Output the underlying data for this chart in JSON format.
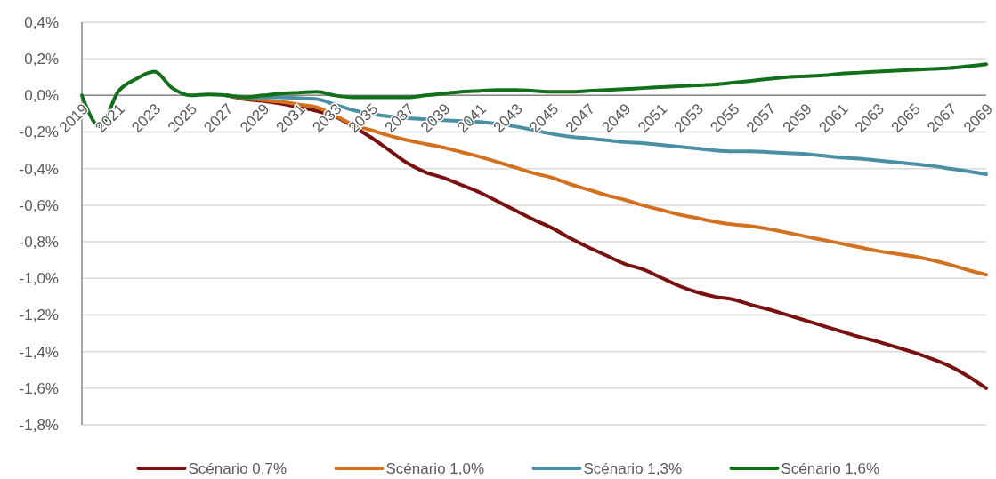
{
  "chart_data": {
    "type": "line",
    "categories": [
      "2019",
      null,
      "2021",
      null,
      "2023",
      null,
      "2025",
      null,
      "2027",
      null,
      "2029",
      null,
      "2031",
      null,
      "2033",
      null,
      "2035",
      null,
      "2037",
      null,
      "2039",
      null,
      "2041",
      null,
      "2043",
      null,
      "2045",
      null,
      "2047",
      null,
      "2049",
      null,
      "2051",
      null,
      "2053",
      null,
      "2055",
      null,
      "2057",
      null,
      "2059",
      null,
      "2061",
      null,
      "2063",
      null,
      "2065",
      null,
      "2067",
      null,
      "2069"
    ],
    "series": [
      {
        "name": "Scénario 0,7%",
        "color": "#7b1010",
        "values": [
          null,
          null,
          null,
          null,
          null,
          null,
          null,
          null,
          0,
          -0.02,
          -0.03,
          -0.045,
          -0.065,
          -0.085,
          -0.115,
          -0.17,
          -0.23,
          -0.3,
          -0.37,
          -0.42,
          -0.45,
          -0.49,
          -0.53,
          -0.58,
          -0.63,
          -0.68,
          -0.725,
          -0.78,
          -0.83,
          -0.875,
          -0.92,
          -0.95,
          -0.995,
          -1.04,
          -1.075,
          -1.1,
          -1.115,
          -1.145,
          -1.17,
          -1.2,
          -1.23,
          -1.26,
          -1.29,
          -1.32,
          -1.345,
          -1.375,
          -1.405,
          -1.44,
          -1.48,
          -1.535,
          -1.6
        ]
      },
      {
        "name": "Scénario 1,0%",
        "color": "#d2711f",
        "values": [
          null,
          null,
          null,
          null,
          null,
          null,
          null,
          null,
          0,
          -0.015,
          -0.025,
          -0.035,
          -0.05,
          -0.065,
          -0.11,
          -0.16,
          -0.19,
          -0.22,
          -0.245,
          -0.265,
          -0.285,
          -0.31,
          -0.335,
          -0.365,
          -0.395,
          -0.425,
          -0.45,
          -0.485,
          -0.515,
          -0.545,
          -0.57,
          -0.6,
          -0.625,
          -0.65,
          -0.67,
          -0.69,
          -0.705,
          -0.715,
          -0.73,
          -0.75,
          -0.77,
          -0.79,
          -0.81,
          -0.83,
          -0.85,
          -0.865,
          -0.88,
          -0.9,
          -0.925,
          -0.955,
          -0.98
        ]
      },
      {
        "name": "Scénario 1,3%",
        "color": "#4a8fa5",
        "values": [
          null,
          null,
          null,
          null,
          null,
          null,
          null,
          null,
          0,
          -0.01,
          -0.01,
          -0.01,
          -0.015,
          -0.02,
          -0.05,
          -0.08,
          -0.1,
          -0.115,
          -0.125,
          -0.13,
          -0.135,
          -0.14,
          -0.145,
          -0.155,
          -0.17,
          -0.19,
          -0.21,
          -0.225,
          -0.235,
          -0.245,
          -0.255,
          -0.26,
          -0.27,
          -0.28,
          -0.29,
          -0.3,
          -0.305,
          -0.305,
          -0.31,
          -0.315,
          -0.32,
          -0.33,
          -0.34,
          -0.345,
          -0.355,
          -0.365,
          -0.375,
          -0.385,
          -0.4,
          -0.415,
          -0.43
        ]
      },
      {
        "name": "Scénario 1,6%",
        "color": "#13701a",
        "values": [
          0,
          -0.17,
          0.02,
          0.09,
          0.13,
          0.04,
          0,
          0.005,
          0,
          -0.01,
          0,
          0.01,
          0.015,
          0.02,
          0,
          -0.01,
          -0.01,
          -0.01,
          -0.01,
          0,
          0.01,
          0.02,
          0.025,
          0.03,
          0.03,
          0.025,
          0.02,
          0.02,
          0.025,
          0.03,
          0.035,
          0.04,
          0.045,
          0.05,
          0.055,
          0.06,
          0.07,
          0.08,
          0.09,
          0.1,
          0.105,
          0.11,
          0.12,
          0.125,
          0.13,
          0.135,
          0.14,
          0.145,
          0.15,
          0.16,
          0.17
        ]
      }
    ],
    "ylim": [
      -1.8,
      0.4
    ],
    "yticks": [
      {
        "value": 0.4,
        "label": "0,4%"
      },
      {
        "value": 0.2,
        "label": "0,2%"
      },
      {
        "value": 0,
        "label": "0,0%"
      },
      {
        "value": -0.2,
        "label": "-0,2%"
      },
      {
        "value": -0.4,
        "label": "-0,4%"
      },
      {
        "value": -0.6,
        "label": "-0,6%"
      },
      {
        "value": -0.8,
        "label": "-0,8%"
      },
      {
        "value": -1,
        "label": "-1,0%"
      },
      {
        "value": -1.2,
        "label": "-1,2%"
      },
      {
        "value": -1.4,
        "label": "-1,4%"
      },
      {
        "value": -1.6,
        "label": "-1,6%"
      },
      {
        "value": -1.8,
        "label": "-1,8%"
      }
    ],
    "grid": "y",
    "legend": "bottom",
    "marker": "none",
    "line_style": "solid"
  }
}
